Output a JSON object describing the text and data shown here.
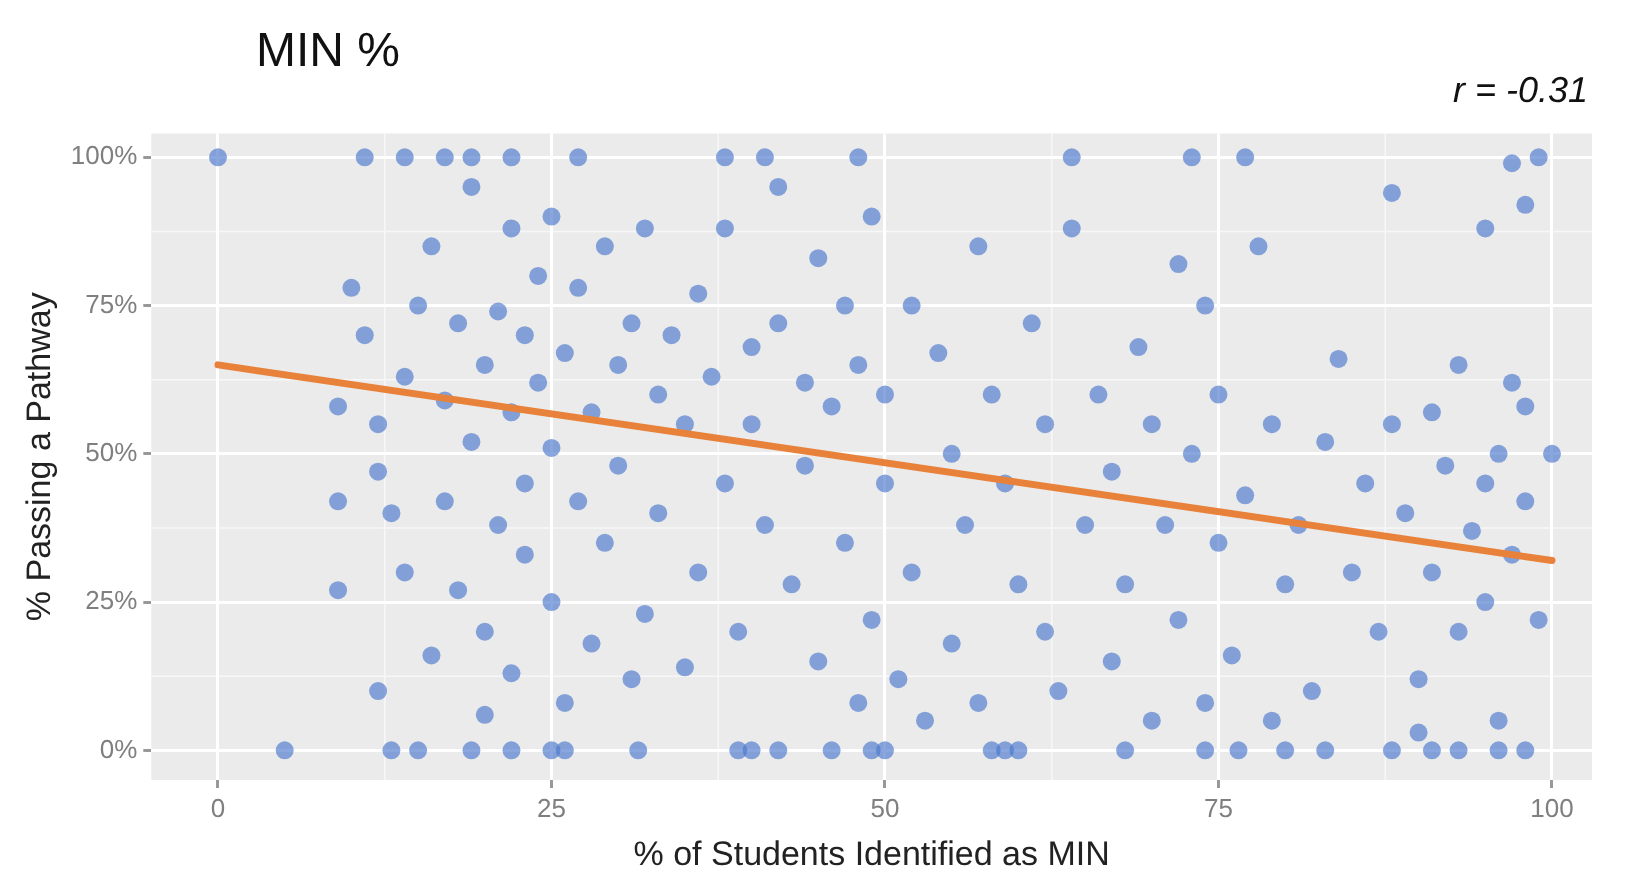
{
  "chart_data": {
    "type": "scatter",
    "title": "MIN %",
    "xlabel": "% of Students Identified as MIN",
    "ylabel": "% Passing a Pathway",
    "annotations": [
      "r = -0.31"
    ],
    "xlim": [
      -5,
      103
    ],
    "ylim": [
      -5,
      104
    ],
    "xticks": [
      0,
      25,
      50,
      75,
      100
    ],
    "yticks": [
      {
        "value": 0,
        "label": "0%"
      },
      {
        "value": 25,
        "label": "25%"
      },
      {
        "value": 50,
        "label": "50%"
      },
      {
        "value": 75,
        "label": "75%"
      },
      {
        "value": 100,
        "label": "100%"
      }
    ],
    "grid": true,
    "legend": false,
    "series": [
      {
        "marker": "circle",
        "color": "#4a78cc",
        "x": [
          0,
          11,
          14,
          17,
          19,
          22,
          27,
          38,
          41,
          48,
          64,
          73,
          77,
          99,
          5,
          13,
          15,
          19,
          22,
          25,
          26,
          31.5,
          39,
          40,
          42,
          46,
          49,
          50,
          58,
          59,
          60,
          68,
          74,
          76.5,
          80,
          83,
          88,
          91,
          93,
          96,
          98,
          9,
          9,
          9,
          10,
          11,
          12,
          12,
          12,
          13,
          14,
          14,
          15,
          16,
          16,
          17,
          17,
          18,
          18,
          19,
          19,
          20,
          20,
          20,
          21,
          21,
          22,
          22,
          22,
          23,
          23,
          23,
          24,
          24,
          25,
          25,
          25,
          26,
          26,
          27,
          27,
          28,
          28,
          29,
          29,
          30,
          30,
          31,
          31,
          32,
          32,
          33,
          33,
          34,
          35,
          35,
          36,
          36,
          37,
          38,
          38,
          39,
          40,
          40,
          41,
          42,
          42,
          43,
          44,
          44,
          45,
          45,
          46,
          47,
          47,
          48,
          48,
          49,
          49,
          50,
          50,
          51,
          52,
          52,
          53,
          54,
          55,
          55,
          56,
          57,
          57,
          58,
          59,
          60,
          61,
          62,
          62,
          63,
          64,
          65,
          66,
          67,
          67,
          68,
          69,
          70,
          70,
          71,
          72,
          72,
          73,
          74,
          74,
          75,
          75,
          76,
          77,
          78,
          79,
          79,
          80,
          81,
          82,
          83,
          84,
          85,
          86,
          87,
          88,
          88,
          89,
          90,
          90,
          91,
          91,
          92,
          93,
          93,
          94,
          95,
          95,
          96,
          96,
          97,
          97,
          97,
          98,
          98,
          99,
          100,
          98,
          95
        ],
        "values": [
          100,
          100,
          100,
          100,
          100,
          100,
          100,
          100,
          100,
          100,
          100,
          100,
          100,
          100,
          0,
          0,
          0,
          0,
          0,
          0,
          0,
          0,
          0,
          0,
          0,
          0,
          0,
          0,
          0,
          0,
          0,
          0,
          0,
          0,
          0,
          0,
          0,
          0,
          0,
          0,
          0,
          58,
          42,
          27,
          78,
          70,
          55,
          47,
          10,
          40,
          30,
          63,
          75,
          85,
          16,
          42,
          59,
          72,
          27,
          95,
          52,
          65,
          20,
          6,
          74,
          38,
          88,
          13,
          57,
          45,
          33,
          70,
          80,
          62,
          90,
          51,
          25,
          67,
          8,
          78,
          42,
          57,
          18,
          85,
          35,
          65,
          48,
          72,
          12,
          88,
          23,
          60,
          40,
          70,
          55,
          14,
          77,
          30,
          63,
          45,
          88,
          20,
          68,
          55,
          38,
          95,
          72,
          28,
          62,
          48,
          83,
          15,
          58,
          75,
          35,
          8,
          65,
          90,
          22,
          60,
          45,
          12,
          75,
          30,
          5,
          67,
          50,
          18,
          38,
          85,
          8,
          60,
          45,
          28,
          72,
          20,
          55,
          10,
          88,
          38,
          60,
          47,
          15,
          28,
          68,
          55,
          5,
          38,
          82,
          22,
          50,
          75,
          8,
          60,
          35,
          16,
          43,
          85,
          55,
          5,
          28,
          38,
          10,
          52,
          66,
          30,
          45,
          20,
          55,
          94,
          40,
          12,
          3,
          57,
          30,
          48,
          65,
          20,
          37,
          88,
          25,
          50,
          5,
          62,
          33,
          99,
          42,
          92,
          22,
          50,
          58,
          45
        ]
      },
      {
        "type": "line",
        "marker": "none",
        "color": "#e8823a",
        "x": [
          0,
          100
        ],
        "values": [
          65,
          32
        ]
      }
    ]
  }
}
